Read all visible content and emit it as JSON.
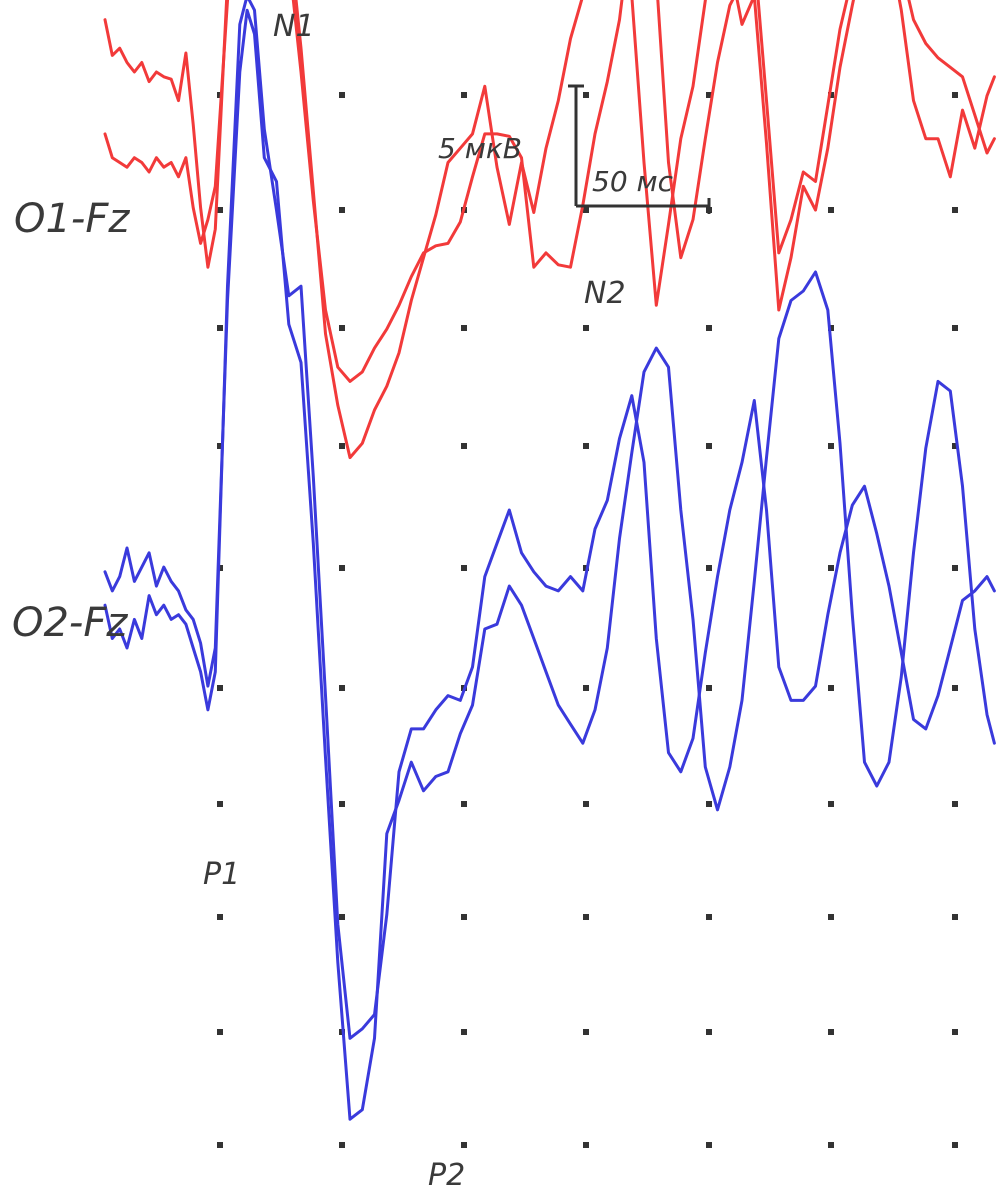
{
  "chart_data": {
    "type": "line",
    "channels": [
      {
        "name": "O1-Fz",
        "color": "#f23a3a",
        "traces": [
          {
            "x": [
              0,
              3,
              6,
              9,
              12,
              15,
              18,
              21,
              24,
              27,
              30,
              33,
              36,
              39,
              42,
              45,
              50,
              55,
              58,
              61,
              65,
              70,
              75,
              80,
              85,
              90,
              95,
              100,
              105,
              110,
              115,
              120,
              125,
              130,
              135,
              140,
              145,
              150,
              155,
              160,
              165,
              170,
              175,
              180,
              185,
              190,
              195,
              200,
              205,
              210,
              215,
              220,
              225,
              230,
              235,
              240,
              245,
              250,
              255,
              260,
              265,
              270,
              275,
              280,
              285,
              290,
              295,
              300,
              305,
              310,
              315,
              320,
              325,
              330,
              335,
              340,
              345,
              350,
              355,
              360,
              363
            ],
            "y": [
              16.4,
              14.9,
              15.2,
              14.6,
              14.2,
              14.6,
              13.8,
              14.2,
              14.0,
              13.9,
              13.0,
              15.0,
              12.0,
              8.5,
              6.0,
              7.6,
              18.0,
              22.8,
              25.2,
              26.8,
              27.4,
              24.2,
              20.2,
              15.2,
              9.2,
              3.2,
              0.2,
              -2.0,
              -1.4,
              0.0,
              1.0,
              2.4,
              4.6,
              6.4,
              8.2,
              10.4,
              11.0,
              11.6,
              13.6,
              10.2,
              7.8,
              10.4,
              8.3,
              11.0,
              13.0,
              15.6,
              17.4,
              20.0,
              22.2,
              21.4,
              17.4,
              10.4,
              4.4,
              7.8,
              11.4,
              13.6,
              17.2,
              20.0,
              18.8,
              16.2,
              17.4,
              11.2,
              4.2,
              6.4,
              9.4,
              8.4,
              11.0,
              14.4,
              17.0,
              19.4,
              20.6,
              19.6,
              16.8,
              13.0,
              11.4,
              11.4,
              9.8,
              12.6,
              11.0,
              13.2,
              14.0
            ]
          },
          {
            "x": [
              0,
              3,
              6,
              9,
              12,
              15,
              18,
              21,
              24,
              27,
              30,
              33,
              36,
              39,
              42,
              45,
              50,
              55,
              58,
              61,
              65,
              70,
              75,
              80,
              85,
              90,
              95,
              100,
              105,
              110,
              115,
              120,
              125,
              130,
              135,
              140,
              145,
              150,
              155,
              160,
              165,
              170,
              175,
              180,
              185,
              190,
              195,
              200,
              205,
              210,
              215,
              220,
              225,
              230,
              235,
              240,
              245,
              250,
              255,
              260,
              265,
              270,
              275,
              280,
              285,
              290,
              295,
              300,
              305,
              310,
              315,
              320,
              325,
              330,
              335,
              340,
              345,
              350,
              355,
              360,
              363
            ],
            "y": [
              11.6,
              10.6,
              10.4,
              10.2,
              10.6,
              10.4,
              10.0,
              10.6,
              10.2,
              10.4,
              9.8,
              10.6,
              8.5,
              7.0,
              8.0,
              9.4,
              17.2,
              21.8,
              23.2,
              24.4,
              24.0,
              22.4,
              19.0,
              14.2,
              8.8,
              4.2,
              1.8,
              1.2,
              1.6,
              2.6,
              3.4,
              4.4,
              5.6,
              6.6,
              6.9,
              7.0,
              7.9,
              9.8,
              11.6,
              11.6,
              11.5,
              10.6,
              6.0,
              6.6,
              6.1,
              6.0,
              8.6,
              11.6,
              13.8,
              16.4,
              20.6,
              22.0,
              18.2,
              10.4,
              6.4,
              8.0,
              11.4,
              14.6,
              17.0,
              18.0,
              19.2,
              13.0,
              6.6,
              8.0,
              10.0,
              9.6,
              12.8,
              16.0,
              18.2,
              19.8,
              20.8,
              19.8,
              18.6,
              16.4,
              15.4,
              14.8,
              14.4,
              14.0,
              12.4,
              10.8,
              11.4
            ]
          }
        ]
      },
      {
        "name": "O2-Fz",
        "color": "#3a3adc",
        "traces": [
          {
            "x": [
              0,
              3,
              6,
              9,
              12,
              15,
              18,
              21,
              24,
              27,
              30,
              33,
              36,
              39,
              42,
              45,
              50,
              55,
              58,
              61,
              65,
              70,
              75,
              80,
              85,
              90,
              95,
              100,
              105,
              110,
              115,
              120,
              125,
              130,
              135,
              140,
              145,
              150,
              155,
              160,
              165,
              170,
              175,
              180,
              185,
              190,
              195,
              200,
              205,
              210,
              215,
              220,
              225,
              230,
              235,
              240,
              245,
              250,
              255,
              260,
              265,
              270,
              275,
              280,
              285,
              290,
              295,
              300,
              305,
              310,
              315,
              320,
              325,
              330,
              335,
              340,
              345,
              350,
              355,
              360,
              363
            ],
            "y": [
              -8.2,
              -9.6,
              -9.2,
              -10.0,
              -8.8,
              -9.6,
              -7.8,
              -8.6,
              -8.2,
              -8.8,
              -8.6,
              -9.0,
              -10.0,
              -11.0,
              -12.6,
              -11.0,
              5.2,
              16.2,
              17.4,
              16.8,
              11.8,
              8.4,
              4.8,
              5.2,
              -2.8,
              -12.0,
              -21.6,
              -26.4,
              -26.0,
              -25.4,
              -21.2,
              -15.2,
              -13.4,
              -13.4,
              -12.6,
              -12.0,
              -12.2,
              -10.8,
              -7.0,
              -5.6,
              -4.2,
              -6.0,
              -6.8,
              -7.4,
              -7.6,
              -7.0,
              -7.6,
              -5.0,
              -3.8,
              -1.2,
              0.6,
              -2.2,
              -9.6,
              -14.4,
              -15.2,
              -13.8,
              -10.2,
              -7.0,
              -4.2,
              -2.2,
              0.4,
              -4.2,
              -10.8,
              -12.2,
              -12.2,
              -11.6,
              -8.6,
              -6.0,
              -4.0,
              -3.2,
              -5.2,
              -7.4,
              -10.2,
              -13.0,
              -13.4,
              -12.0,
              -10.0,
              -8.0,
              -7.6,
              -7.0,
              -7.6
            ]
          },
          {
            "x": [
              0,
              3,
              6,
              9,
              12,
              15,
              18,
              21,
              24,
              27,
              30,
              33,
              36,
              39,
              42,
              45,
              50,
              55,
              58,
              61,
              65,
              70,
              75,
              80,
              85,
              90,
              95,
              100,
              105,
              110,
              115,
              120,
              125,
              130,
              135,
              140,
              145,
              150,
              155,
              160,
              165,
              170,
              175,
              180,
              185,
              190,
              195,
              200,
              205,
              210,
              215,
              220,
              225,
              230,
              235,
              240,
              245,
              250,
              255,
              260,
              265,
              270,
              275,
              280,
              285,
              290,
              295,
              300,
              305,
              310,
              315,
              320,
              325,
              330,
              335,
              340,
              345,
              350,
              355,
              360,
              363
            ],
            "y": [
              -6.8,
              -7.6,
              -7.0,
              -5.8,
              -7.2,
              -6.6,
              -6.0,
              -7.4,
              -6.6,
              -7.2,
              -7.6,
              -8.4,
              -8.8,
              -9.8,
              -11.6,
              -10.0,
              4.6,
              14.2,
              16.8,
              15.8,
              10.6,
              9.6,
              3.6,
              2.0,
              -5.6,
              -14.6,
              -23.2,
              -29.8,
              -29.4,
              -26.4,
              -17.8,
              -16.4,
              -14.8,
              -16.0,
              -15.4,
              -15.2,
              -13.6,
              -12.4,
              -9.2,
              -9.0,
              -7.4,
              -8.2,
              -9.6,
              -11.0,
              -12.4,
              -13.2,
              -14.0,
              -12.6,
              -10.0,
              -5.4,
              -1.8,
              1.6,
              2.6,
              1.8,
              -4.2,
              -8.8,
              -15.0,
              -16.8,
              -15.0,
              -12.2,
              -7.2,
              -2.0,
              3.0,
              4.6,
              5.0,
              5.8,
              4.2,
              -1.4,
              -8.6,
              -14.8,
              -15.8,
              -14.8,
              -11.2,
              -6.0,
              -1.6,
              1.2,
              0.8,
              -3.2,
              -9.2,
              -12.8,
              -14.0
            ]
          }
        ]
      }
    ],
    "xlim": [
      0,
      363
    ],
    "ylim": [
      -31,
      28
    ],
    "grid": "dots",
    "channel_labels": [
      "O1-Fz",
      "O2-Fz"
    ],
    "peak_labels": [
      {
        "text": "N1",
        "x": 40,
        "y": 28.6
      },
      {
        "text": "N2",
        "x": 102,
        "y": 13.8
      },
      {
        "text": "P1",
        "x": 23,
        "y": -13.8
      },
      {
        "text": "P2",
        "x": 72,
        "y": -31.8
      }
    ],
    "scale_bar": {
      "amplitude_label": "5 мкВ",
      "amplitude": 5,
      "time_label": "50 мс",
      "time": 50
    }
  }
}
